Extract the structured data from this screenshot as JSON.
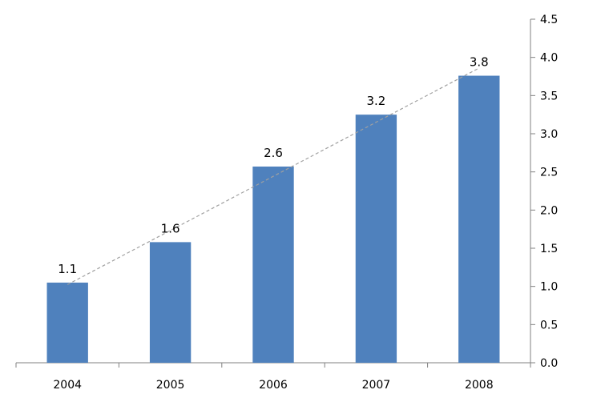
{
  "chart_data": {
    "type": "bar",
    "categories": [
      "2004",
      "2005",
      "2006",
      "2007",
      "2008"
    ],
    "values": [
      1.05,
      1.58,
      2.57,
      3.25,
      3.76
    ],
    "data_labels": [
      "1.1",
      "1.6",
      "2.6",
      "3.2",
      "3.8"
    ],
    "title": "",
    "xlabel": "",
    "ylabel": "",
    "ylim": [
      0,
      4.5
    ],
    "y_ticks": [
      0.0,
      0.5,
      1.0,
      1.5,
      2.0,
      2.5,
      3.0,
      3.5,
      4.0,
      4.5
    ],
    "y_tick_labels": [
      "0.0",
      "0.5",
      "1.0",
      "1.5",
      "2.0",
      "2.5",
      "3.0",
      "3.5",
      "4.0",
      "4.5"
    ],
    "y_axis_side": "right",
    "grid": false,
    "legend": "none",
    "trendline": {
      "type": "linear",
      "style": "dashed"
    },
    "colors": {
      "bar": "#4F81BD",
      "axis": "#808080",
      "trendline": "#A0A0A0",
      "text": "#000000"
    }
  }
}
